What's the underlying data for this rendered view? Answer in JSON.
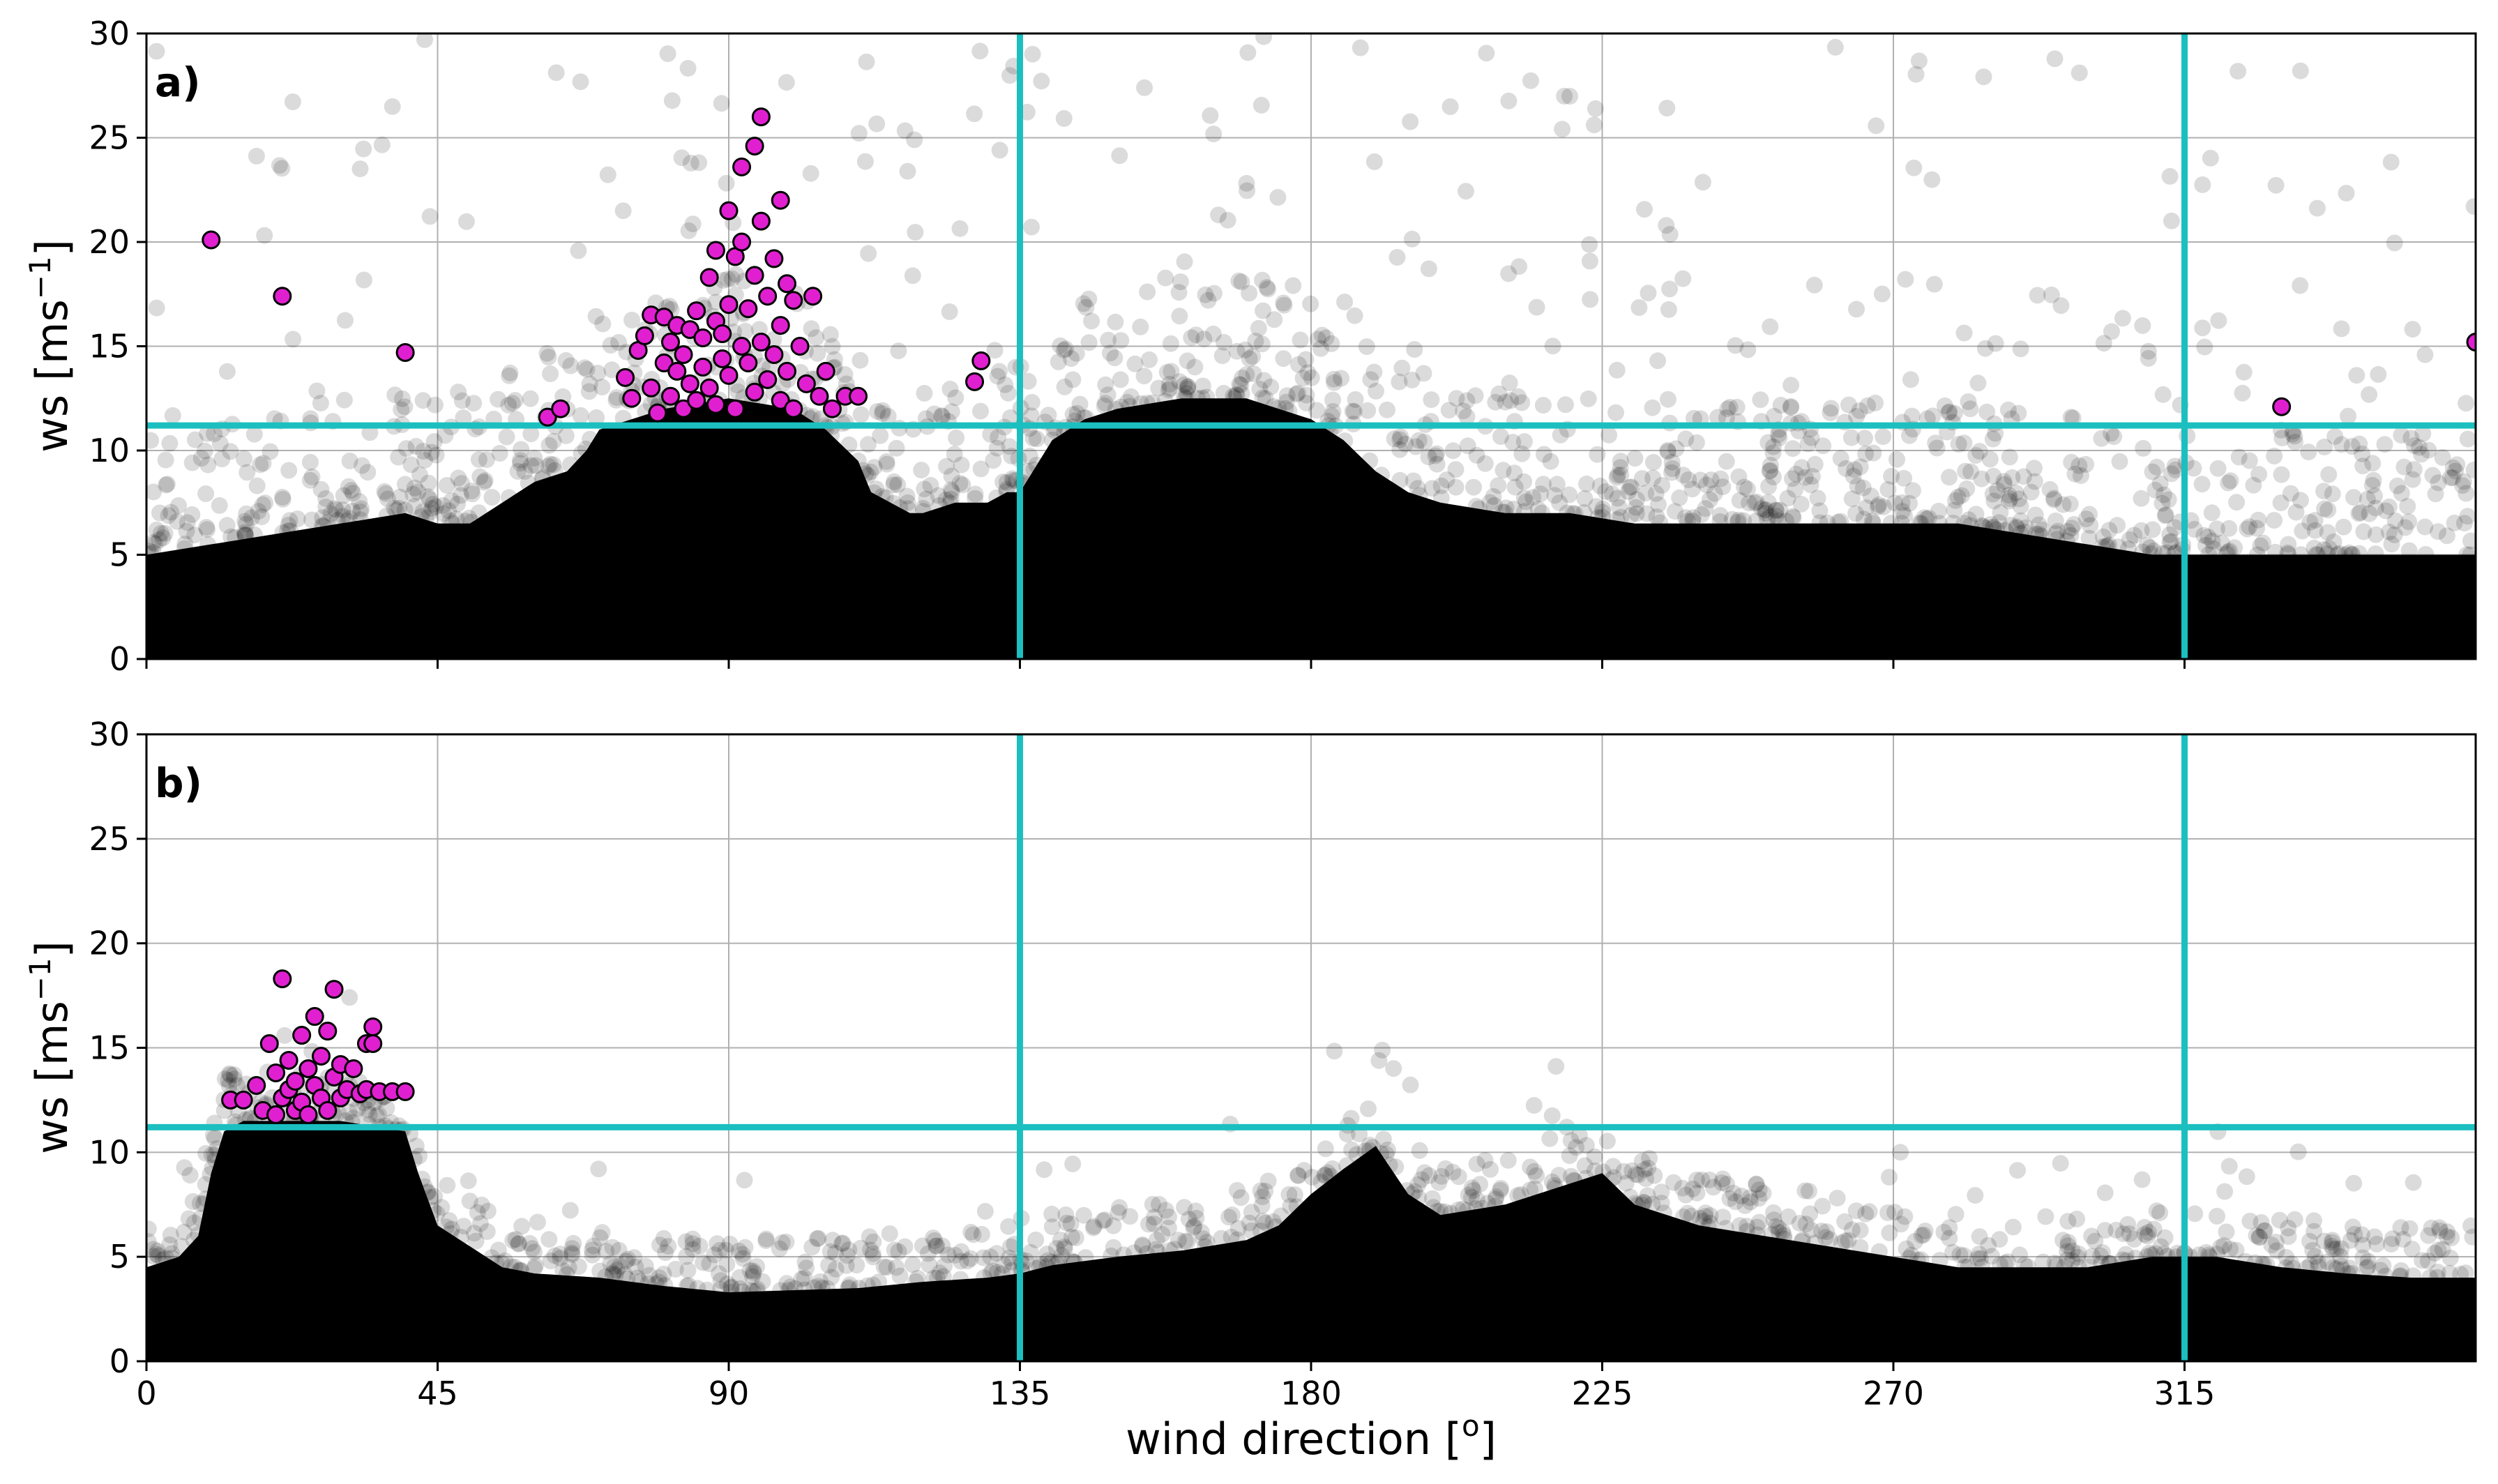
{
  "chart_data": [
    {
      "panel_label": "a)",
      "type": "scatter",
      "xlabel": "",
      "ylabel_main": "ws [ms",
      "ylabel_sup": "−1",
      "ylabel_close": "]",
      "xlim": [
        0,
        360
      ],
      "ylim": [
        0,
        30
      ],
      "xticks": [
        0,
        45,
        90,
        135,
        180,
        225,
        270,
        315
      ],
      "yticks": [
        0,
        5,
        10,
        15,
        20,
        25,
        30
      ],
      "grid": true,
      "reference_lines": {
        "horizontal_ws": 11.2,
        "vertical_dir": [
          135,
          315
        ],
        "color": "#1bbfc0"
      },
      "background_colour": "#000000",
      "highlight_colour": "#e020d0",
      "background_envelope": {
        "wind_direction": [
          0,
          10,
          20,
          30,
          40,
          45,
          50,
          55,
          60,
          65,
          68,
          70,
          75,
          80,
          90,
          100,
          105,
          110,
          112,
          115,
          118,
          120,
          125,
          130,
          133,
          135,
          140,
          145,
          150,
          160,
          170,
          180,
          185,
          190,
          195,
          200,
          210,
          220,
          230,
          240,
          250,
          260,
          270,
          280,
          290,
          300,
          310,
          320,
          330,
          340,
          350,
          360
        ],
        "ws_upper": [
          5,
          5.5,
          6,
          6.5,
          7,
          6.5,
          6.5,
          7.5,
          8.5,
          9,
          10,
          11,
          11.5,
          12,
          12.5,
          12,
          11,
          9.5,
          8,
          7.5,
          7,
          7,
          7.5,
          7.5,
          8,
          8,
          10.5,
          11.5,
          12,
          12.5,
          12.5,
          11.5,
          10.5,
          9,
          8,
          7.5,
          7,
          7,
          6.5,
          6.5,
          6.5,
          6.5,
          6.5,
          6.5,
          6,
          5.5,
          5,
          5,
          5,
          5,
          5,
          5
        ]
      },
      "highlight_points": [
        [
          10,
          20.1
        ],
        [
          21,
          17.4
        ],
        [
          40,
          14.7
        ],
        [
          62,
          11.6
        ],
        [
          64,
          12.0
        ],
        [
          74,
          13.5
        ],
        [
          75,
          12.5
        ],
        [
          76,
          14.8
        ],
        [
          77,
          15.5
        ],
        [
          78,
          16.5
        ],
        [
          78,
          13.0
        ],
        [
          79,
          11.8
        ],
        [
          80,
          14.2
        ],
        [
          80,
          16.4
        ],
        [
          81,
          12.6
        ],
        [
          81,
          15.2
        ],
        [
          82,
          13.8
        ],
        [
          82,
          16.0
        ],
        [
          83,
          12.0
        ],
        [
          83,
          14.6
        ],
        [
          84,
          15.8
        ],
        [
          84,
          13.2
        ],
        [
          85,
          16.7
        ],
        [
          85,
          12.4
        ],
        [
          86,
          14.0
        ],
        [
          86,
          15.4
        ],
        [
          87,
          18.3
        ],
        [
          87,
          13.0
        ],
        [
          88,
          19.6
        ],
        [
          88,
          16.2
        ],
        [
          88,
          12.2
        ],
        [
          89,
          14.4
        ],
        [
          89,
          15.6
        ],
        [
          90,
          21.5
        ],
        [
          90,
          17.0
        ],
        [
          90,
          13.6
        ],
        [
          91,
          19.3
        ],
        [
          91,
          12.0
        ],
        [
          92,
          23.6
        ],
        [
          92,
          20.0
        ],
        [
          92,
          15.0
        ],
        [
          93,
          14.2
        ],
        [
          93,
          16.8
        ],
        [
          94,
          24.6
        ],
        [
          94,
          18.4
        ],
        [
          94,
          12.8
        ],
        [
          95,
          26.0
        ],
        [
          95,
          21.0
        ],
        [
          95,
          15.2
        ],
        [
          96,
          17.4
        ],
        [
          96,
          13.4
        ],
        [
          97,
          19.2
        ],
        [
          97,
          14.6
        ],
        [
          98,
          22.0
        ],
        [
          98,
          16.0
        ],
        [
          98,
          12.4
        ],
        [
          99,
          18.0
        ],
        [
          99,
          13.8
        ],
        [
          100,
          17.2
        ],
        [
          100,
          12.0
        ],
        [
          101,
          15.0
        ],
        [
          102,
          13.2
        ],
        [
          103,
          17.4
        ],
        [
          104,
          12.6
        ],
        [
          105,
          13.8
        ],
        [
          106,
          12.0
        ],
        [
          108,
          12.6
        ],
        [
          110,
          12.6
        ],
        [
          128,
          13.3
        ],
        [
          129,
          14.3
        ],
        [
          330,
          12.1
        ],
        [
          360,
          15.2
        ]
      ]
    },
    {
      "panel_label": "b)",
      "type": "scatter",
      "xlabel_main": "wind direction [",
      "xlabel_sup": "o",
      "xlabel_close": "]",
      "ylabel_main": "ws [ms",
      "ylabel_sup": "−1",
      "ylabel_close": "]",
      "xlim": [
        0,
        360
      ],
      "ylim": [
        0,
        30
      ],
      "xticks": [
        0,
        45,
        90,
        135,
        180,
        225,
        270,
        315
      ],
      "yticks": [
        0,
        5,
        10,
        15,
        20,
        25,
        30
      ],
      "grid": true,
      "reference_lines": {
        "horizontal_ws": 11.2,
        "vertical_dir": [
          135,
          315
        ],
        "color": "#1bbfc0"
      },
      "background_colour": "#000000",
      "highlight_colour": "#e020d0",
      "background_envelope": {
        "wind_direction": [
          0,
          5,
          8,
          10,
          12,
          15,
          20,
          30,
          40,
          42,
          45,
          50,
          55,
          60,
          70,
          80,
          90,
          100,
          110,
          120,
          130,
          135,
          140,
          150,
          160,
          170,
          175,
          180,
          185,
          190,
          195,
          200,
          210,
          220,
          225,
          230,
          240,
          250,
          260,
          270,
          280,
          290,
          300,
          310,
          320,
          330,
          340,
          350,
          360
        ],
        "ws_upper": [
          4.5,
          5,
          6,
          9,
          11,
          11.5,
          11.5,
          11.5,
          11,
          9,
          6.5,
          5.5,
          4.5,
          4.2,
          4,
          3.6,
          3.3,
          3.4,
          3.5,
          3.8,
          4,
          4.2,
          4.6,
          5,
          5.3,
          5.8,
          6.5,
          8,
          9.2,
          10.3,
          8,
          7,
          7.5,
          8.5,
          9,
          7.5,
          6.5,
          6,
          5.5,
          5,
          4.5,
          4.5,
          4.5,
          5,
          5,
          4.5,
          4.2,
          4,
          4
        ]
      },
      "highlight_points": [
        [
          13,
          12.5
        ],
        [
          15,
          12.5
        ],
        [
          17,
          13.2
        ],
        [
          18,
          12.0
        ],
        [
          19,
          15.2
        ],
        [
          20,
          13.8
        ],
        [
          20,
          11.8
        ],
        [
          21,
          18.3
        ],
        [
          21,
          12.6
        ],
        [
          22,
          14.4
        ],
        [
          22,
          13.0
        ],
        [
          23,
          12.0
        ],
        [
          23,
          13.4
        ],
        [
          24,
          15.6
        ],
        [
          24,
          12.4
        ],
        [
          25,
          14.0
        ],
        [
          25,
          11.8
        ],
        [
          26,
          13.2
        ],
        [
          26,
          16.5
        ],
        [
          27,
          12.6
        ],
        [
          27,
          14.6
        ],
        [
          28,
          15.8
        ],
        [
          28,
          12.0
        ],
        [
          29,
          13.6
        ],
        [
          29,
          17.8
        ],
        [
          30,
          12.6
        ],
        [
          30,
          14.2
        ],
        [
          31,
          13.0
        ],
        [
          32,
          14.0
        ],
        [
          33,
          12.8
        ],
        [
          34,
          15.2
        ],
        [
          34,
          13.0
        ],
        [
          35,
          16.0
        ],
        [
          35,
          15.2
        ],
        [
          36,
          12.9
        ],
        [
          38,
          12.9
        ],
        [
          40,
          12.9
        ]
      ]
    }
  ]
}
